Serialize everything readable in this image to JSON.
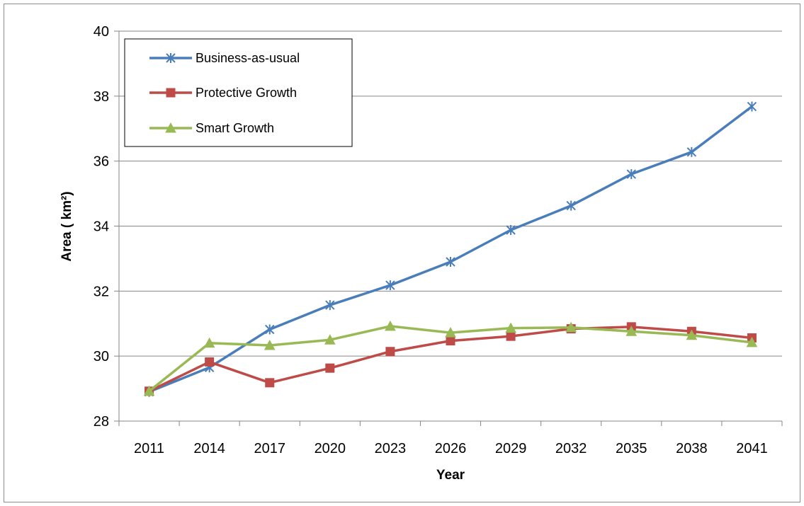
{
  "chart_data": {
    "type": "line",
    "title": "",
    "xlabel": "Year",
    "ylabel": "Area ( km²)",
    "ylim": [
      28,
      40
    ],
    "yticks": [
      "28",
      "30",
      "32",
      "34",
      "36",
      "38",
      "40"
    ],
    "categories": [
      "2011",
      "2014",
      "2017",
      "2020",
      "2023",
      "2026",
      "2029",
      "2032",
      "2035",
      "2038",
      "2041"
    ],
    "grid": true,
    "legend": "top-left",
    "series": [
      {
        "name": "Business-as-usual",
        "color": "#4a7ebb",
        "marker": "asterisk",
        "values": [
          28.9,
          29.65,
          30.82,
          31.57,
          32.18,
          32.9,
          33.88,
          34.63,
          35.6,
          36.28,
          37.68
        ]
      },
      {
        "name": "Protective Growth",
        "color": "#be4b48",
        "marker": "square",
        "values": [
          28.92,
          29.82,
          29.18,
          29.63,
          30.14,
          30.47,
          30.61,
          30.84,
          30.9,
          30.76,
          30.56
        ]
      },
      {
        "name": "Smart Growth",
        "color": "#98b954",
        "marker": "triangle",
        "values": [
          28.92,
          30.4,
          30.33,
          30.5,
          30.92,
          30.72,
          30.86,
          30.88,
          30.76,
          30.64,
          30.42
        ]
      }
    ]
  }
}
